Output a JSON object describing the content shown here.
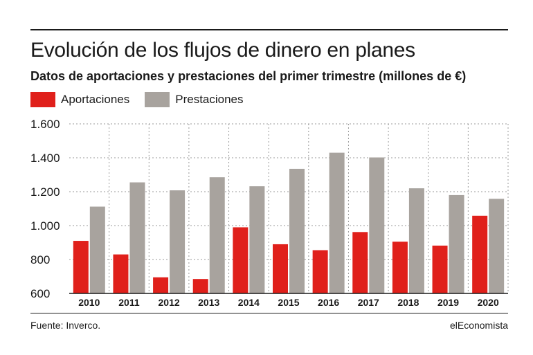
{
  "header": {
    "title": "Evolución de los flujos de dinero en planes",
    "subtitle": "Datos de aportaciones y prestaciones del primer trimestre (millones de €)"
  },
  "footer": {
    "source": "Fuente: Inverco.",
    "brand": "elEconomista"
  },
  "colors": {
    "aportaciones": "#e0201b",
    "prestaciones": "#a8a39e"
  },
  "chart_data": {
    "type": "bar",
    "categories": [
      "2010",
      "2011",
      "2012",
      "2013",
      "2014",
      "2015",
      "2016",
      "2017",
      "2018",
      "2019",
      "2020"
    ],
    "series": [
      {
        "name": "Aportaciones",
        "values": [
          910,
          830,
          695,
          685,
          990,
          890,
          855,
          962,
          905,
          882,
          1058
        ]
      },
      {
        "name": "Prestaciones",
        "values": [
          1112,
          1255,
          1208,
          1285,
          1232,
          1335,
          1430,
          1402,
          1220,
          1180,
          1158
        ]
      }
    ],
    "ylim": [
      600,
      1600
    ],
    "yticks": [
      600,
      800,
      1000,
      1200,
      1400,
      1600
    ],
    "ytick_labels": [
      "600",
      "800",
      "1.000",
      "1.200",
      "1.400",
      "1.600"
    ],
    "grid": true,
    "legend": "top-left"
  }
}
